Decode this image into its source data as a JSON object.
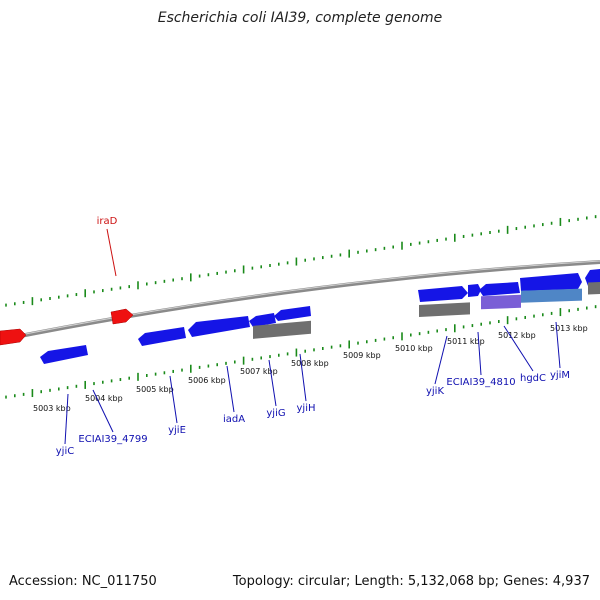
{
  "title": "Escherichia coli IAI39, complete genome",
  "footer": {
    "accession": "Accession: NC_011750",
    "summary": "Topology: circular; Length: 5,132,068 bp; Genes: 4,937"
  },
  "colors": {
    "forward": "#1515e6",
    "reverse": "#1515e6",
    "red_gene": "#ee1111",
    "gray_gene": "#6f6f6f",
    "purple_gene": "#7a5fd6",
    "steel_gene": "#4f86c6",
    "tick": "#1a8a1a",
    "label_blue": "#1010b0",
    "label_red": "#cc1111"
  },
  "kbp_labels": [
    "5003 kbp",
    "5004 kbp",
    "5005 kbp",
    "5006 kbp",
    "5007 kbp",
    "5008 kbp",
    "5009 kbp",
    "5010 kbp",
    "5011 kbp",
    "5012 kbp",
    "5013 kbp"
  ],
  "genes": [
    {
      "name": "iraD",
      "color": "label_red"
    },
    {
      "name": "yjiC",
      "color": "label_blue"
    },
    {
      "name": "ECIAI39_4799",
      "color": "label_blue"
    },
    {
      "name": "yjiE",
      "color": "label_blue"
    },
    {
      "name": "iadA",
      "color": "label_blue"
    },
    {
      "name": "yjiG",
      "color": "label_blue"
    },
    {
      "name": "yjiH",
      "color": "label_blue"
    },
    {
      "name": "yjiK",
      "color": "label_blue"
    },
    {
      "name": "ECIAI39_4810",
      "color": "label_blue"
    },
    {
      "name": "hgdC",
      "color": "label_blue"
    },
    {
      "name": "yjiM",
      "color": "label_blue"
    }
  ]
}
